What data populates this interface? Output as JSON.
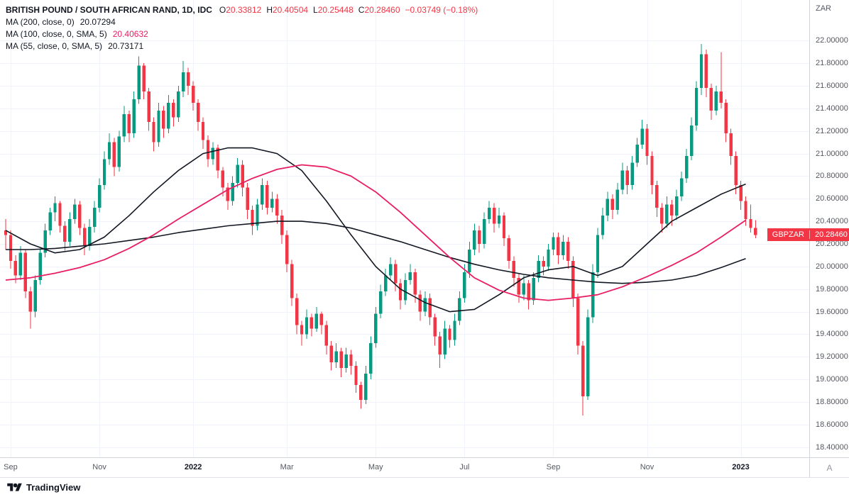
{
  "header": {
    "symbol_title": "BRITISH POUND / SOUTH AFRICAN RAND, 1D, IDC",
    "ohlc_items": [
      {
        "k": "O",
        "v": "20.33812"
      },
      {
        "k": "H",
        "v": "20.40504"
      },
      {
        "k": "L",
        "v": "20.25448"
      },
      {
        "k": "C",
        "v": "20.28460"
      }
    ],
    "change": "−0.03749 (−0.18%)",
    "indicators": [
      {
        "label": "MA (200, close, 0)",
        "value": "20.07294",
        "value_color": "#131722"
      },
      {
        "label": "MA (100, close, 0, SMA, 5)",
        "value": "20.40632",
        "value_color": "#e91e63"
      },
      {
        "label": "MA (55, close, 0, SMA, 5)",
        "value": "20.73171",
        "value_color": "#131722"
      }
    ]
  },
  "axes": {
    "price_axis_title": "ZAR",
    "price_ticks": [
      "22.00000",
      "21.80000",
      "21.60000",
      "21.40000",
      "21.20000",
      "21.00000",
      "20.80000",
      "20.60000",
      "20.40000",
      "20.20000",
      "20.00000",
      "19.80000",
      "19.60000",
      "19.40000",
      "19.20000",
      "19.00000",
      "18.80000",
      "18.60000",
      "18.40000"
    ],
    "time_ticks": [
      {
        "label": "Sep",
        "i": 1,
        "year": false
      },
      {
        "label": "Nov",
        "i": 19,
        "year": false
      },
      {
        "label": "2022",
        "i": 38,
        "year": true
      },
      {
        "label": "Mar",
        "i": 57,
        "year": false
      },
      {
        "label": "May",
        "i": 75,
        "year": false
      },
      {
        "label": "Jul",
        "i": 93,
        "year": false
      },
      {
        "label": "Sep",
        "i": 111,
        "year": false
      },
      {
        "label": "Nov",
        "i": 130,
        "year": false
      },
      {
        "label": "2023",
        "i": 149,
        "year": true
      }
    ],
    "corner_label": "A"
  },
  "price_label": {
    "symbol": "GBPZAR",
    "value": "20.28460",
    "price": 20.2846
  },
  "footer": {
    "brand": "TradingView"
  },
  "colors": {
    "up": "#089981",
    "down": "#f23645",
    "ma200": "#131722",
    "ma100": "#e91e63",
    "ma55": "#131722",
    "grid": "#f0f3fa",
    "axis_text": "#555861",
    "tag_bg": "#f23645"
  },
  "chart_data": {
    "type": "candlestick",
    "title": "British Pound / South African Rand, 1D, IDC",
    "xlabel": "",
    "ylabel": "ZAR",
    "grid": true,
    "price_range": {
      "min": 18.31,
      "max": 22.36
    },
    "x_step": 6.95,
    "ma_sample_step": 5,
    "candles": [
      [
        20.32,
        20.42,
        20.15,
        20.28
      ],
      [
        20.28,
        20.32,
        19.98,
        20.05
      ],
      [
        20.05,
        20.1,
        19.85,
        19.92
      ],
      [
        19.92,
        20.18,
        19.88,
        20.12
      ],
      [
        20.12,
        20.15,
        19.72,
        19.78
      ],
      [
        19.78,
        19.82,
        19.45,
        19.6
      ],
      [
        19.6,
        19.92,
        19.55,
        19.88
      ],
      [
        19.88,
        20.16,
        19.84,
        20.12
      ],
      [
        20.12,
        20.38,
        20.08,
        20.32
      ],
      [
        20.32,
        20.52,
        20.28,
        20.48
      ],
      [
        20.48,
        20.62,
        20.4,
        20.56
      ],
      [
        20.56,
        20.58,
        20.3,
        20.36
      ],
      [
        20.36,
        20.4,
        20.14,
        20.22
      ],
      [
        20.22,
        20.48,
        20.18,
        20.42
      ],
      [
        20.42,
        20.6,
        20.38,
        20.55
      ],
      [
        20.55,
        20.58,
        20.28,
        20.34
      ],
      [
        20.34,
        20.38,
        20.1,
        20.18
      ],
      [
        20.18,
        20.42,
        20.14,
        20.35
      ],
      [
        20.35,
        20.58,
        20.3,
        20.52
      ],
      [
        20.52,
        20.78,
        20.48,
        20.72
      ],
      [
        20.72,
        21.02,
        20.68,
        20.95
      ],
      [
        20.95,
        21.18,
        20.9,
        21.1
      ],
      [
        21.1,
        21.14,
        20.8,
        20.88
      ],
      [
        20.88,
        21.2,
        20.84,
        21.15
      ],
      [
        21.15,
        21.42,
        21.1,
        21.35
      ],
      [
        21.35,
        21.38,
        21.1,
        21.18
      ],
      [
        21.18,
        21.55,
        21.14,
        21.48
      ],
      [
        21.48,
        21.86,
        21.44,
        21.78
      ],
      [
        21.78,
        21.8,
        21.48,
        21.55
      ],
      [
        21.55,
        21.58,
        21.2,
        21.28
      ],
      [
        21.28,
        21.32,
        21.02,
        21.1
      ],
      [
        21.1,
        21.45,
        21.06,
        21.38
      ],
      [
        21.38,
        21.42,
        21.14,
        21.22
      ],
      [
        21.22,
        21.52,
        21.18,
        21.45
      ],
      [
        21.45,
        21.48,
        21.24,
        21.32
      ],
      [
        21.32,
        21.6,
        21.28,
        21.55
      ],
      [
        21.55,
        21.82,
        21.5,
        21.72
      ],
      [
        21.72,
        21.76,
        21.52,
        21.6
      ],
      [
        21.6,
        21.64,
        21.38,
        21.45
      ],
      [
        21.45,
        21.48,
        21.2,
        21.28
      ],
      [
        21.28,
        21.32,
        21.04,
        21.12
      ],
      [
        21.12,
        21.16,
        20.88,
        20.95
      ],
      [
        20.95,
        21.1,
        20.9,
        21.05
      ],
      [
        21.05,
        21.08,
        20.78,
        20.85
      ],
      [
        20.85,
        20.88,
        20.62,
        20.7
      ],
      [
        20.7,
        20.74,
        20.5,
        20.58
      ],
      [
        20.58,
        20.8,
        20.54,
        20.74
      ],
      [
        20.74,
        20.96,
        20.7,
        20.9
      ],
      [
        20.9,
        20.94,
        20.62,
        20.7
      ],
      [
        20.7,
        20.74,
        20.42,
        20.5
      ],
      [
        20.5,
        20.54,
        20.28,
        20.36
      ],
      [
        20.36,
        20.6,
        20.32,
        20.55
      ],
      [
        20.55,
        20.78,
        20.5,
        20.72
      ],
      [
        20.72,
        20.76,
        20.46,
        20.52
      ],
      [
        20.52,
        20.66,
        20.48,
        20.6
      ],
      [
        20.6,
        20.64,
        20.38,
        20.45
      ],
      [
        20.45,
        20.5,
        20.2,
        20.28
      ],
      [
        20.28,
        20.32,
        19.95,
        20.02
      ],
      [
        20.02,
        20.06,
        19.65,
        19.72
      ],
      [
        19.72,
        19.76,
        19.4,
        19.48
      ],
      [
        19.48,
        19.52,
        19.3,
        19.4
      ],
      [
        19.4,
        19.62,
        19.36,
        19.55
      ],
      [
        19.55,
        19.58,
        19.38,
        19.45
      ],
      [
        19.45,
        19.64,
        19.42,
        19.58
      ],
      [
        19.58,
        19.6,
        19.4,
        19.48
      ],
      [
        19.48,
        19.52,
        19.22,
        19.3
      ],
      [
        19.3,
        19.34,
        19.08,
        19.15
      ],
      [
        19.15,
        19.32,
        19.1,
        19.25
      ],
      [
        19.25,
        19.28,
        19.02,
        19.1
      ],
      [
        19.1,
        19.28,
        19.06,
        19.22
      ],
      [
        19.22,
        19.26,
        19.04,
        19.12
      ],
      [
        19.12,
        19.16,
        18.88,
        18.95
      ],
      [
        18.95,
        18.98,
        18.74,
        18.82
      ],
      [
        18.82,
        19.12,
        18.78,
        19.05
      ],
      [
        19.05,
        19.38,
        19.0,
        19.32
      ],
      [
        19.32,
        19.64,
        19.28,
        19.58
      ],
      [
        19.58,
        19.84,
        19.54,
        19.78
      ],
      [
        19.78,
        19.98,
        19.74,
        19.92
      ],
      [
        19.92,
        20.08,
        19.88,
        20.02
      ],
      [
        20.02,
        20.06,
        19.78,
        19.85
      ],
      [
        19.85,
        19.89,
        19.62,
        19.7
      ],
      [
        19.7,
        19.94,
        19.66,
        19.88
      ],
      [
        19.88,
        20.02,
        19.84,
        19.95
      ],
      [
        19.95,
        19.98,
        19.68,
        19.75
      ],
      [
        19.75,
        19.79,
        19.52,
        19.6
      ],
      [
        19.6,
        19.78,
        19.56,
        19.72
      ],
      [
        19.72,
        19.76,
        19.48,
        19.55
      ],
      [
        19.55,
        19.58,
        19.3,
        19.38
      ],
      [
        19.38,
        19.42,
        19.1,
        19.22
      ],
      [
        19.22,
        19.52,
        19.18,
        19.45
      ],
      [
        19.45,
        19.48,
        19.28,
        19.35
      ],
      [
        19.35,
        19.58,
        19.3,
        19.52
      ],
      [
        19.52,
        19.78,
        19.48,
        19.72
      ],
      [
        19.72,
        20.02,
        19.68,
        19.95
      ],
      [
        19.95,
        20.22,
        19.9,
        20.15
      ],
      [
        20.15,
        20.38,
        20.1,
        20.32
      ],
      [
        20.32,
        20.36,
        20.12,
        20.2
      ],
      [
        20.2,
        20.48,
        20.16,
        20.42
      ],
      [
        20.42,
        20.58,
        20.38,
        20.52
      ],
      [
        20.52,
        20.56,
        20.3,
        20.38
      ],
      [
        20.38,
        20.52,
        20.34,
        20.45
      ],
      [
        20.45,
        20.48,
        20.18,
        20.25
      ],
      [
        20.25,
        20.28,
        19.98,
        20.05
      ],
      [
        20.05,
        20.09,
        19.82,
        19.9
      ],
      [
        19.9,
        19.94,
        19.68,
        19.75
      ],
      [
        19.75,
        19.92,
        19.7,
        19.85
      ],
      [
        19.85,
        19.88,
        19.62,
        19.7
      ],
      [
        19.7,
        19.95,
        19.66,
        19.9
      ],
      [
        19.9,
        20.1,
        19.86,
        20.05
      ],
      [
        20.05,
        20.09,
        19.92,
        20.0
      ],
      [
        20.0,
        20.2,
        19.96,
        20.15
      ],
      [
        20.15,
        20.3,
        20.1,
        20.26
      ],
      [
        20.26,
        20.3,
        20.02,
        20.1
      ],
      [
        20.1,
        20.28,
        20.06,
        20.22
      ],
      [
        20.22,
        20.26,
        19.98,
        20.05
      ],
      [
        20.05,
        20.09,
        19.64,
        19.72
      ],
      [
        19.72,
        19.76,
        19.22,
        19.3
      ],
      [
        19.3,
        19.34,
        18.68,
        18.85
      ],
      [
        18.85,
        19.62,
        18.82,
        19.55
      ],
      [
        19.55,
        20.02,
        19.5,
        19.95
      ],
      [
        19.95,
        20.34,
        19.9,
        20.28
      ],
      [
        20.28,
        20.52,
        20.24,
        20.45
      ],
      [
        20.45,
        20.66,
        20.4,
        20.6
      ],
      [
        20.6,
        20.64,
        20.42,
        20.5
      ],
      [
        20.5,
        20.74,
        20.46,
        20.68
      ],
      [
        20.68,
        20.92,
        20.64,
        20.85
      ],
      [
        20.85,
        20.89,
        20.64,
        20.72
      ],
      [
        20.72,
        20.98,
        20.68,
        20.92
      ],
      [
        20.92,
        21.14,
        20.88,
        21.08
      ],
      [
        21.08,
        21.3,
        21.04,
        21.22
      ],
      [
        21.22,
        21.26,
        20.9,
        20.98
      ],
      [
        20.98,
        21.02,
        20.64,
        20.72
      ],
      [
        20.72,
        20.76,
        20.44,
        20.52
      ],
      [
        20.52,
        20.56,
        20.3,
        20.38
      ],
      [
        20.38,
        20.62,
        20.34,
        20.55
      ],
      [
        20.55,
        20.59,
        20.36,
        20.45
      ],
      [
        20.45,
        20.68,
        20.41,
        20.62
      ],
      [
        20.62,
        20.84,
        20.58,
        20.78
      ],
      [
        20.78,
        21.04,
        20.74,
        20.98
      ],
      [
        20.98,
        21.32,
        20.94,
        21.25
      ],
      [
        21.25,
        21.64,
        21.2,
        21.58
      ],
      [
        21.58,
        21.97,
        21.52,
        21.88
      ],
      [
        21.88,
        21.92,
        21.5,
        21.58
      ],
      [
        21.58,
        21.62,
        21.3,
        21.38
      ],
      [
        21.38,
        21.6,
        21.34,
        21.55
      ],
      [
        21.55,
        21.9,
        21.4,
        21.45
      ],
      [
        21.45,
        21.48,
        21.1,
        21.18
      ],
      [
        21.18,
        21.22,
        20.9,
        20.98
      ],
      [
        20.98,
        21.02,
        20.64,
        20.72
      ],
      [
        20.72,
        20.76,
        20.5,
        20.58
      ],
      [
        20.58,
        20.62,
        20.36,
        20.42
      ],
      [
        20.42,
        20.55,
        20.3,
        20.34
      ],
      [
        20.34,
        20.41,
        20.25,
        20.28
      ]
    ],
    "series": [
      {
        "name": "MA 200",
        "data_name": "ma-200-line",
        "color": "#131722",
        "width": 1.6,
        "values": [
          20.15,
          20.15,
          20.16,
          20.18,
          20.2,
          20.23,
          20.26,
          20.3,
          20.33,
          20.36,
          20.38,
          20.4,
          20.4,
          20.38,
          20.34,
          20.28,
          20.22,
          20.15,
          20.08,
          20.02,
          19.97,
          19.93,
          19.9,
          19.88,
          19.86,
          19.85,
          19.86,
          19.88,
          19.92,
          19.99,
          20.07
        ]
      },
      {
        "name": "MA 55",
        "data_name": "ma-55-line",
        "color": "#131722",
        "width": 1.6,
        "values": [
          20.32,
          20.2,
          20.12,
          20.15,
          20.26,
          20.45,
          20.66,
          20.85,
          21.0,
          21.05,
          21.05,
          21.0,
          20.85,
          20.58,
          20.28,
          20.0,
          19.8,
          19.68,
          19.6,
          19.62,
          19.75,
          19.9,
          19.97,
          20.0,
          19.92,
          20.0,
          20.2,
          20.4,
          20.52,
          20.64,
          20.73
        ]
      },
      {
        "name": "MA 100",
        "data_name": "ma-100-line",
        "color": "#e91e63",
        "width": 1.8,
        "values": [
          19.88,
          19.9,
          19.94,
          19.99,
          20.06,
          20.16,
          20.28,
          20.42,
          20.55,
          20.68,
          20.78,
          20.86,
          20.9,
          20.88,
          20.8,
          20.66,
          20.48,
          20.28,
          20.08,
          19.9,
          19.79,
          19.72,
          19.7,
          19.72,
          19.75,
          19.82,
          19.91,
          20.01,
          20.12,
          20.26,
          20.41
        ]
      }
    ]
  }
}
